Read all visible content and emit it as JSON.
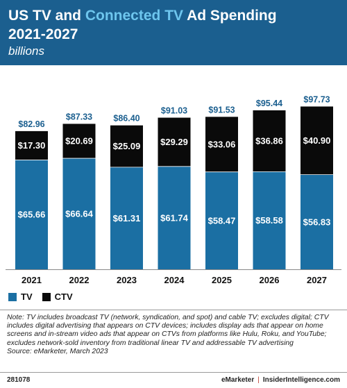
{
  "header": {
    "title_part1": "US TV and ",
    "title_accent": "Connected TV",
    "title_part2": " Ad Spending",
    "title_line2": "2021-2027",
    "subtitle": "billions"
  },
  "colors": {
    "tv": "#1b6fa3",
    "ctv": "#0a0a0a",
    "total_label": "#1b5f8f",
    "header_bg": "#1b5f8f",
    "title_accent": "#6ec6ee"
  },
  "chart_data": {
    "type": "bar",
    "stacked": true,
    "categories": [
      "2021",
      "2022",
      "2023",
      "2024",
      "2025",
      "2026",
      "2027"
    ],
    "series": [
      {
        "name": "TV",
        "values": [
          65.66,
          66.64,
          61.31,
          61.74,
          58.47,
          58.58,
          56.83
        ],
        "labels": [
          "$65.66",
          "$66.64",
          "$61.31",
          "$61.74",
          "$58.47",
          "$58.58",
          "$56.83"
        ]
      },
      {
        "name": "CTV",
        "values": [
          17.3,
          20.69,
          25.09,
          29.29,
          33.06,
          36.86,
          40.9
        ],
        "labels": [
          "$17.30",
          "$20.69",
          "$25.09",
          "$29.29",
          "$33.06",
          "$36.86",
          "$40.90"
        ]
      }
    ],
    "totals": [
      82.96,
      87.33,
      86.4,
      91.03,
      91.53,
      95.44,
      97.73
    ],
    "total_labels": [
      "$82.96",
      "$87.33",
      "$86.40",
      "$91.03",
      "$91.53",
      "$95.44",
      "$97.73"
    ],
    "ylim": [
      0,
      100
    ],
    "legend": "bottom-left"
  },
  "notes": {
    "note": "Note: TV includes broadcast TV (network, syndication, and spot) and cable TV; excludes digital; CTV includes digital advertising that appears on CTV devices; includes display ads that appear on home screens and in-stream video ads that appear on CTVs from platforms like Hulu, Roku, and YouTube; excludes network-sold inventory from traditional linear TV and addressable TV advertising",
    "source": "Source: eMarketer, March 2023"
  },
  "footer": {
    "id": "281078",
    "brand_left": "eMarketer",
    "separator": "|",
    "brand_right": "InsiderIntelligence.com"
  }
}
